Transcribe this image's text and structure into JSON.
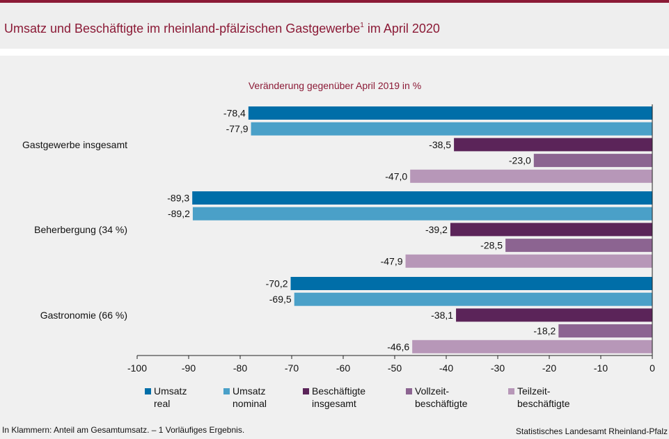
{
  "header": {
    "title_main": "Umsatz und Beschäftigte im rheinland-pfälzischen Gastgewerbe",
    "title_sup": "1",
    "title_tail": " im April 2020"
  },
  "colors": {
    "accent": "#8b1a36",
    "series": [
      "#006ea8",
      "#4aa0c8",
      "#5b2459",
      "#8c6491",
      "#b797b8"
    ]
  },
  "chart_data": {
    "type": "bar",
    "orientation": "horizontal",
    "subtitle": "Veränderung gegenüber April 2019 in %",
    "categories": [
      "Gastgewerbe insgesamt",
      "Beherbergung (34 %)",
      "Gastronomie (66 %)"
    ],
    "series": [
      {
        "name": "Umsatz real",
        "values": [
          -78.4,
          -89.3,
          -70.2
        ],
        "labels": [
          "-78,4",
          "-89,3",
          "-70,2"
        ]
      },
      {
        "name": "Umsatz nominal",
        "values": [
          -77.9,
          -89.2,
          -69.5
        ],
        "labels": [
          "-77,9",
          "-89,2",
          "-69,5"
        ]
      },
      {
        "name": "Beschäftigte insgesamt",
        "values": [
          -38.5,
          -39.2,
          -38.1
        ],
        "labels": [
          "-38,5",
          "-39,2",
          "-38,1"
        ]
      },
      {
        "name": "Vollzeitbeschäftigte",
        "values": [
          -23.0,
          -28.5,
          -18.2
        ],
        "labels": [
          "-23,0",
          "-28,5",
          "-18,2"
        ]
      },
      {
        "name": "Teilzeitbeschäftigte",
        "values": [
          -47.0,
          -47.9,
          -46.6
        ],
        "labels": [
          "-47,0",
          "-47,9",
          "-46,6"
        ]
      }
    ],
    "xlim": [
      -100,
      0
    ],
    "xticks": [
      -100,
      -90,
      -80,
      -70,
      -60,
      -50,
      -40,
      -30,
      -20,
      -10,
      0
    ],
    "grid": false,
    "legend_position": "bottom"
  },
  "legend": [
    {
      "line1": "Umsatz",
      "line2": "real"
    },
    {
      "line1": "Umsatz",
      "line2": "nominal"
    },
    {
      "line1": "Beschäftigte",
      "line2": "insgesamt"
    },
    {
      "line1": "Vollzeit-",
      "line2": "beschäftigte"
    },
    {
      "line1": "Teilzeit-",
      "line2": "beschäftigte"
    }
  ],
  "footer": {
    "note": "In Klammern: Anteil am Gesamtumsatz. – 1 Vorläufiges Ergebnis.",
    "source": "Statistisches Landesamt Rheinland-Pfalz"
  }
}
